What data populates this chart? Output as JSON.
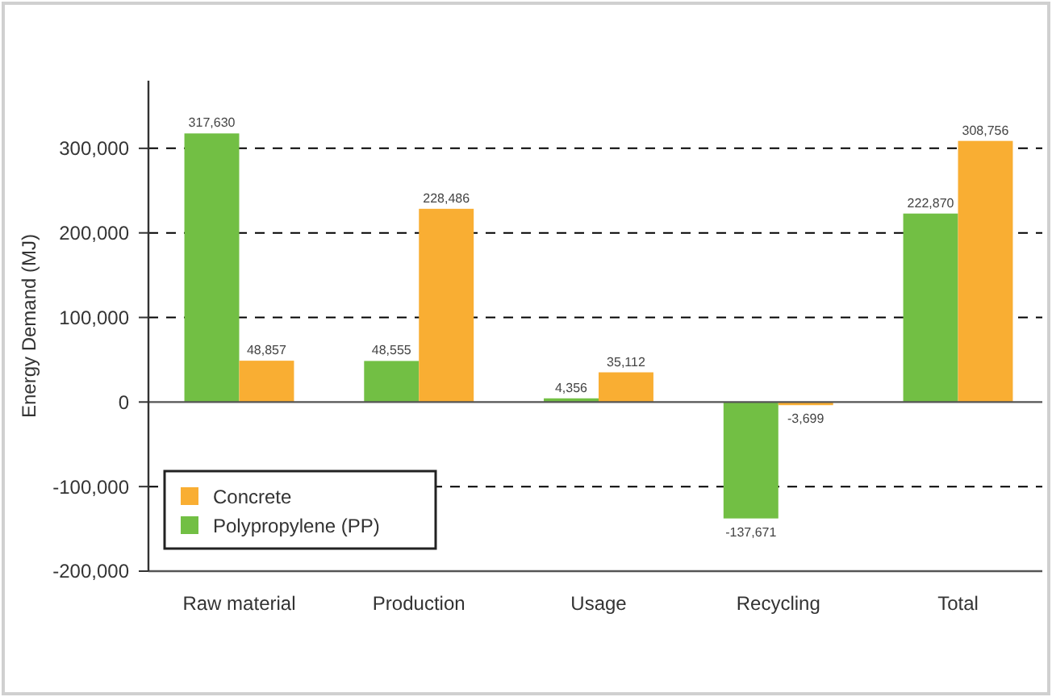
{
  "chart_data": {
    "type": "bar",
    "ylabel": "Energy Demand (MJ)",
    "categories": [
      "Raw material",
      "Production",
      "Usage",
      "Recycling",
      "Total"
    ],
    "series": [
      {
        "name": "Polypropylene (PP)",
        "color": "#72bf44",
        "values": [
          317630,
          48555,
          4356,
          -137671,
          222870
        ],
        "value_labels": [
          "317,630",
          "48,555",
          "4,356",
          "-137,671",
          "222,870"
        ]
      },
      {
        "name": "Concrete",
        "color": "#f9ae33",
        "values": [
          48857,
          228486,
          35112,
          -3699,
          308756
        ],
        "value_labels": [
          "48,857",
          "228,486",
          "35,112",
          "-3,699",
          "308,756"
        ]
      }
    ],
    "ylim": [
      -200000,
      380000
    ],
    "yticks": [
      {
        "value": -200000,
        "label": "-200,000"
      },
      {
        "value": -100000,
        "label": "-100,000"
      },
      {
        "value": 0,
        "label": "0"
      },
      {
        "value": 100000,
        "label": "100,000"
      },
      {
        "value": 200000,
        "label": "200,000"
      },
      {
        "value": 300000,
        "label": "300,000"
      }
    ],
    "grid": "y",
    "legend": "bottom left"
  }
}
